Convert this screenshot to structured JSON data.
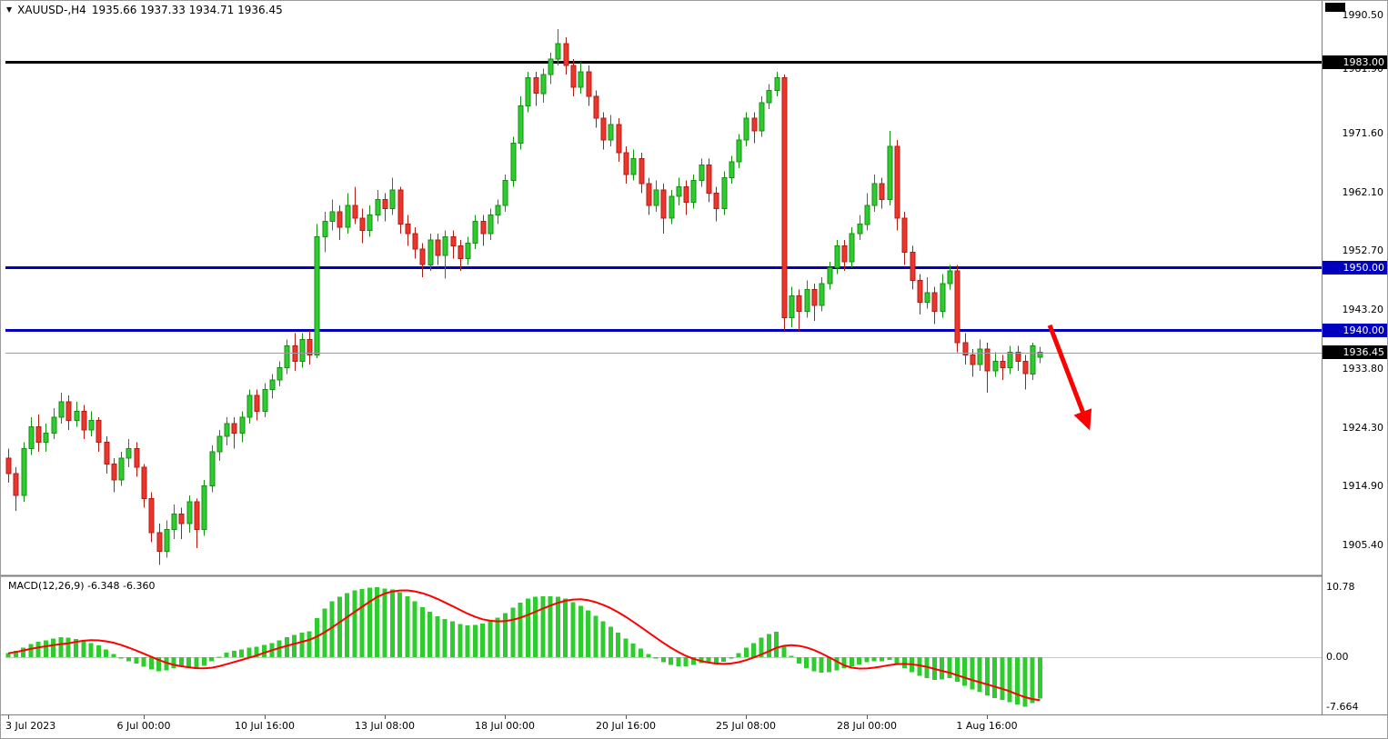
{
  "header": {
    "triangle": "▼",
    "symbol": "XAUUSD-,H4",
    "ohlc": "1935.66 1937.33 1934.71 1936.45"
  },
  "price_axis": {
    "ticks": [
      {
        "label": "1990.50",
        "price": 1990.5
      },
      {
        "label": "1981.90",
        "price": 1981.9
      },
      {
        "label": "1971.60",
        "price": 1971.6
      },
      {
        "label": "1962.10",
        "price": 1962.1
      },
      {
        "label": "1952.70",
        "price": 1952.7
      },
      {
        "label": "1943.20",
        "price": 1943.2
      },
      {
        "label": "1933.80",
        "price": 1933.8
      },
      {
        "label": "1924.30",
        "price": 1924.3
      },
      {
        "label": "1914.90",
        "price": 1914.9
      },
      {
        "label": "1905.40",
        "price": 1905.4
      }
    ],
    "tags": [
      {
        "label": "1983.00",
        "price": 1983.0,
        "bg": "#000000"
      },
      {
        "label": "1950.00",
        "price": 1950.0,
        "bg": "#0000BE"
      },
      {
        "label": "1940.00",
        "price": 1940.0,
        "bg": "#0000BE"
      },
      {
        "label": "1936.45",
        "price": 1936.45,
        "bg": "#000000"
      }
    ]
  },
  "time_axis": [
    {
      "label": "3 Jul 2023",
      "bar": 0
    },
    {
      "label": "6 Jul 00:00",
      "bar": 18
    },
    {
      "label": "10 Jul 16:00",
      "bar": 34
    },
    {
      "label": "13 Jul 08:00",
      "bar": 50
    },
    {
      "label": "18 Jul 00:00",
      "bar": 66
    },
    {
      "label": "20 Jul 16:00",
      "bar": 82
    },
    {
      "label": "25 Jul 08:00",
      "bar": 98
    },
    {
      "label": "28 Jul 00:00",
      "bar": 114
    },
    {
      "label": "1 Aug 16:00",
      "bar": 130
    }
  ],
  "macd_panel": {
    "title": "MACD(12,26,9) -6.348 -6.360",
    "ticks": [
      {
        "label": "10.78",
        "value": 10.78
      },
      {
        "label": "0.00",
        "value": 0.0
      },
      {
        "label": "-7.664",
        "value": -7.664
      }
    ]
  },
  "colors": {
    "bull": "#2ECC2E",
    "bull_border": "#149014",
    "bear": "#EE352C",
    "bear_border": "#B01D14",
    "macd_hist": "#2ECC2E",
    "macd_signal": "#FF0000",
    "bg": "#FFFFFF"
  },
  "chart_data": {
    "type": "candlestick",
    "symbol": "XAUUSD-",
    "timeframe": "H4",
    "current": {
      "open": 1935.66,
      "high": 1937.33,
      "low": 1934.71,
      "close": 1936.45
    },
    "price_axis_range": [
      1900.8,
      1990.8
    ],
    "candles": [
      [
        1919.5,
        1921.0,
        1915.5,
        1917.0
      ],
      [
        1917.0,
        1918.0,
        1911.0,
        1913.5
      ],
      [
        1913.5,
        1922.0,
        1912.5,
        1921.0
      ],
      [
        1921.0,
        1926.0,
        1920.0,
        1924.5
      ],
      [
        1924.5,
        1926.5,
        1920.5,
        1922.0
      ],
      [
        1922.0,
        1925.0,
        1920.5,
        1923.5
      ],
      [
        1923.5,
        1927.5,
        1922.5,
        1926.0
      ],
      [
        1926.0,
        1930.0,
        1925.0,
        1928.5
      ],
      [
        1928.5,
        1929.5,
        1924.0,
        1925.5
      ],
      [
        1925.5,
        1928.5,
        1924.5,
        1927.0
      ],
      [
        1927.0,
        1928.0,
        1922.5,
        1924.0
      ],
      [
        1924.0,
        1927.0,
        1923.0,
        1925.5
      ],
      [
        1925.5,
        1926.0,
        1920.5,
        1922.0
      ],
      [
        1922.0,
        1923.0,
        1917.0,
        1918.5
      ],
      [
        1918.5,
        1919.5,
        1914.0,
        1916.0
      ],
      [
        1916.0,
        1920.5,
        1915.0,
        1919.5
      ],
      [
        1919.5,
        1922.5,
        1918.0,
        1921.0
      ],
      [
        1921.0,
        1922.0,
        1916.5,
        1918.0
      ],
      [
        1918.0,
        1918.5,
        1911.5,
        1913.0
      ],
      [
        1913.0,
        1914.0,
        1906.0,
        1907.5
      ],
      [
        1907.5,
        1909.0,
        1902.3,
        1904.5
      ],
      [
        1904.5,
        1909.5,
        1903.5,
        1908.0
      ],
      [
        1908.0,
        1912.0,
        1906.5,
        1910.5
      ],
      [
        1910.5,
        1911.5,
        1906.5,
        1909.0
      ],
      [
        1909.0,
        1913.5,
        1907.5,
        1912.5
      ],
      [
        1912.5,
        1913.0,
        1905.0,
        1908.0
      ],
      [
        1908.0,
        1916.0,
        1907.0,
        1915.0
      ],
      [
        1915.0,
        1921.5,
        1914.0,
        1920.5
      ],
      [
        1920.5,
        1924.0,
        1919.0,
        1923.0
      ],
      [
        1923.0,
        1926.0,
        1921.5,
        1925.0
      ],
      [
        1925.0,
        1926.0,
        1921.0,
        1923.5
      ],
      [
        1923.5,
        1927.0,
        1922.0,
        1926.0
      ],
      [
        1926.0,
        1930.5,
        1925.0,
        1929.5
      ],
      [
        1929.5,
        1930.5,
        1925.5,
        1927.0
      ],
      [
        1927.0,
        1931.5,
        1926.0,
        1930.5
      ],
      [
        1930.5,
        1933.0,
        1929.0,
        1932.0
      ],
      [
        1932.0,
        1935.0,
        1931.0,
        1934.0
      ],
      [
        1934.0,
        1938.5,
        1933.0,
        1937.5
      ],
      [
        1937.5,
        1939.5,
        1933.5,
        1935.0
      ],
      [
        1935.0,
        1939.5,
        1934.0,
        1938.5
      ],
      [
        1938.5,
        1940.0,
        1934.5,
        1936.0
      ],
      [
        1936.0,
        1957.0,
        1935.5,
        1955.0
      ],
      [
        1955.0,
        1959.0,
        1952.5,
        1957.5
      ],
      [
        1957.5,
        1961.0,
        1956.0,
        1959.0
      ],
      [
        1959.0,
        1960.0,
        1954.5,
        1956.5
      ],
      [
        1956.5,
        1962.0,
        1955.5,
        1960.0
      ],
      [
        1960.0,
        1963.0,
        1957.0,
        1958.0
      ],
      [
        1958.0,
        1959.5,
        1954.0,
        1956.0
      ],
      [
        1956.0,
        1960.0,
        1955.0,
        1958.5
      ],
      [
        1958.5,
        1962.5,
        1957.5,
        1961.0
      ],
      [
        1961.0,
        1962.0,
        1957.5,
        1959.5
      ],
      [
        1959.5,
        1964.5,
        1958.5,
        1962.5
      ],
      [
        1962.5,
        1963.0,
        1955.5,
        1957.0
      ],
      [
        1957.0,
        1958.5,
        1953.5,
        1955.5
      ],
      [
        1955.5,
        1956.5,
        1951.5,
        1953.0
      ],
      [
        1953.0,
        1954.0,
        1948.5,
        1950.5
      ],
      [
        1950.5,
        1955.5,
        1949.5,
        1954.5
      ],
      [
        1954.5,
        1955.5,
        1950.5,
        1952.0
      ],
      [
        1952.0,
        1956.0,
        1948.3,
        1955.0
      ],
      [
        1955.0,
        1956.0,
        1951.5,
        1953.5
      ],
      [
        1953.5,
        1954.5,
        1949.5,
        1951.5
      ],
      [
        1951.5,
        1955.0,
        1950.5,
        1954.0
      ],
      [
        1954.0,
        1958.5,
        1953.0,
        1957.5
      ],
      [
        1957.5,
        1958.5,
        1953.5,
        1955.5
      ],
      [
        1955.5,
        1959.5,
        1954.5,
        1958.5
      ],
      [
        1958.5,
        1961.0,
        1957.0,
        1960.0
      ],
      [
        1960.0,
        1965.0,
        1959.0,
        1964.0
      ],
      [
        1964.0,
        1971.0,
        1963.0,
        1970.0
      ],
      [
        1970.0,
        1977.5,
        1969.0,
        1976.0
      ],
      [
        1976.0,
        1981.5,
        1975.0,
        1980.5
      ],
      [
        1980.5,
        1981.5,
        1976.0,
        1978.0
      ],
      [
        1978.0,
        1982.0,
        1976.5,
        1981.0
      ],
      [
        1981.0,
        1984.5,
        1979.5,
        1983.5
      ],
      [
        1983.5,
        1988.3,
        1982.5,
        1986.0
      ],
      [
        1986.0,
        1987.0,
        1981.0,
        1982.5
      ],
      [
        1982.5,
        1983.5,
        1977.5,
        1979.0
      ],
      [
        1979.0,
        1983.0,
        1978.0,
        1981.5
      ],
      [
        1981.5,
        1982.5,
        1976.0,
        1977.5
      ],
      [
        1977.5,
        1978.5,
        1972.5,
        1974.0
      ],
      [
        1974.0,
        1975.0,
        1969.0,
        1970.5
      ],
      [
        1970.5,
        1974.5,
        1969.5,
        1973.0
      ],
      [
        1973.0,
        1974.0,
        1967.0,
        1968.5
      ],
      [
        1968.5,
        1969.5,
        1963.5,
        1965.0
      ],
      [
        1965.0,
        1969.0,
        1964.0,
        1967.5
      ],
      [
        1967.5,
        1968.5,
        1962.0,
        1963.5
      ],
      [
        1963.5,
        1964.5,
        1958.5,
        1960.0
      ],
      [
        1960.0,
        1964.0,
        1959.0,
        1962.5
      ],
      [
        1962.5,
        1963.5,
        1955.5,
        1958.0
      ],
      [
        1958.0,
        1962.5,
        1957.0,
        1961.5
      ],
      [
        1961.5,
        1964.5,
        1960.0,
        1963.0
      ],
      [
        1963.0,
        1964.0,
        1958.5,
        1960.5
      ],
      [
        1960.5,
        1965.0,
        1959.5,
        1964.0
      ],
      [
        1964.0,
        1967.5,
        1963.0,
        1966.5
      ],
      [
        1966.5,
        1967.5,
        1960.5,
        1962.0
      ],
      [
        1962.0,
        1963.0,
        1957.5,
        1959.5
      ],
      [
        1959.5,
        1965.5,
        1958.5,
        1964.5
      ],
      [
        1964.5,
        1968.0,
        1963.5,
        1967.0
      ],
      [
        1967.0,
        1971.5,
        1966.0,
        1970.5
      ],
      [
        1970.5,
        1975.0,
        1969.5,
        1974.0
      ],
      [
        1974.0,
        1975.0,
        1970.0,
        1972.0
      ],
      [
        1972.0,
        1977.5,
        1971.0,
        1976.5
      ],
      [
        1976.5,
        1979.5,
        1975.5,
        1978.5
      ],
      [
        1978.5,
        1981.5,
        1977.5,
        1980.5
      ],
      [
        1980.5,
        1981.0,
        1940.0,
        1942.0
      ],
      [
        1942.0,
        1947.0,
        1940.5,
        1945.5
      ],
      [
        1945.5,
        1946.5,
        1939.8,
        1943.0
      ],
      [
        1943.0,
        1948.0,
        1942.0,
        1946.5
      ],
      [
        1946.5,
        1947.5,
        1941.5,
        1944.0
      ],
      [
        1944.0,
        1948.5,
        1943.0,
        1947.5
      ],
      [
        1947.5,
        1951.0,
        1946.5,
        1950.0
      ],
      [
        1950.0,
        1954.5,
        1949.0,
        1953.5
      ],
      [
        1953.5,
        1954.5,
        1949.5,
        1951.0
      ],
      [
        1951.0,
        1956.5,
        1950.0,
        1955.5
      ],
      [
        1955.5,
        1958.5,
        1954.5,
        1957.0
      ],
      [
        1957.0,
        1962.0,
        1956.0,
        1960.0
      ],
      [
        1960.0,
        1965.0,
        1959.0,
        1963.5
      ],
      [
        1963.5,
        1964.5,
        1959.5,
        1961.0
      ],
      [
        1961.0,
        1972.0,
        1960.0,
        1969.5
      ],
      [
        1969.5,
        1970.5,
        1956.0,
        1958.0
      ],
      [
        1958.0,
        1959.0,
        1950.5,
        1952.5
      ],
      [
        1952.5,
        1953.5,
        1946.5,
        1948.0
      ],
      [
        1948.0,
        1949.0,
        1942.5,
        1944.5
      ],
      [
        1944.5,
        1948.5,
        1943.5,
        1946.0
      ],
      [
        1946.0,
        1947.0,
        1941.0,
        1943.0
      ],
      [
        1943.0,
        1949.0,
        1942.0,
        1947.5
      ],
      [
        1947.5,
        1950.5,
        1946.5,
        1949.5
      ],
      [
        1949.5,
        1950.5,
        1936.5,
        1938.0
      ],
      [
        1938.0,
        1939.5,
        1934.5,
        1936.0
      ],
      [
        1936.0,
        1937.0,
        1932.5,
        1934.5
      ],
      [
        1934.5,
        1938.5,
        1933.5,
        1937.0
      ],
      [
        1937.0,
        1938.0,
        1930.0,
        1933.5
      ],
      [
        1933.5,
        1936.5,
        1932.5,
        1935.0
      ],
      [
        1935.0,
        1936.0,
        1932.0,
        1934.0
      ],
      [
        1934.0,
        1937.5,
        1933.0,
        1936.5
      ],
      [
        1936.5,
        1937.5,
        1933.5,
        1935.0
      ],
      [
        1935.0,
        1936.0,
        1930.5,
        1933.0
      ],
      [
        1933.0,
        1938.0,
        1932.0,
        1937.5
      ],
      [
        1935.66,
        1937.33,
        1934.71,
        1936.45
      ]
    ],
    "hlines": [
      {
        "price": 1983.0,
        "color": "#000000",
        "width": 3,
        "role": "resistance"
      },
      {
        "price": 1950.0,
        "color": "#0000BE",
        "width": 3,
        "role": "support-resistance"
      },
      {
        "price": 1940.0,
        "color": "#0000BE",
        "width": 3,
        "role": "support"
      },
      {
        "price": 1936.45,
        "color": "#9B9B9B",
        "width": 1,
        "role": "current-price"
      }
    ],
    "indicator": {
      "type": "MACD",
      "params": [
        12,
        26,
        9
      ],
      "current_macd": -6.348,
      "current_signal": -6.36,
      "ylim": [
        -7.664,
        10.78
      ],
      "signal_smoothing": 9,
      "histogram": [
        0.6,
        1.0,
        1.5,
        2.0,
        2.4,
        2.6,
        2.9,
        3.1,
        3.0,
        2.8,
        2.5,
        2.2,
        1.8,
        1.2,
        0.5,
        -0.2,
        -0.6,
        -1.0,
        -1.5,
        -1.9,
        -2.2,
        -2.0,
        -1.7,
        -1.5,
        -1.6,
        -1.8,
        -1.3,
        -0.6,
        0.1,
        0.7,
        1.0,
        1.2,
        1.5,
        1.6,
        1.9,
        2.2,
        2.6,
        3.1,
        3.4,
        3.8,
        4.0,
        6.0,
        7.5,
        8.6,
        9.3,
        9.9,
        10.3,
        10.5,
        10.7,
        10.78,
        10.6,
        10.4,
        10.0,
        9.4,
        8.6,
        7.7,
        7.0,
        6.3,
        5.9,
        5.5,
        5.1,
        4.9,
        5.0,
        5.2,
        5.6,
        6.1,
        6.8,
        7.6,
        8.4,
        9.0,
        9.3,
        9.4,
        9.4,
        9.3,
        9.0,
        8.5,
        7.9,
        7.2,
        6.4,
        5.5,
        4.7,
        3.8,
        2.9,
        2.1,
        1.3,
        0.5,
        -0.2,
        -0.8,
        -1.2,
        -1.4,
        -1.4,
        -1.2,
        -0.9,
        -0.8,
        -0.9,
        -0.7,
        -0.2,
        0.6,
        1.5,
        2.2,
        3.0,
        3.6,
        3.9,
        1.8,
        0.2,
        -1.0,
        -1.7,
        -2.2,
        -2.4,
        -2.3,
        -2.0,
        -1.7,
        -1.4,
        -1.1,
        -0.8,
        -0.6,
        -0.6,
        -0.4,
        -1.0,
        -1.7,
        -2.3,
        -2.9,
        -3.2,
        -3.5,
        -3.4,
        -3.2,
        -3.8,
        -4.4,
        -5.0,
        -5.3,
        -5.9,
        -6.3,
        -6.6,
        -6.9,
        -7.3,
        -7.664,
        -7.1,
        -6.348
      ]
    },
    "annotation_arrow": {
      "from": {
        "bar": 138.3,
        "price": 1940.8
      },
      "to": {
        "bar": 143.4,
        "price": 1924.6
      },
      "color": "#FF0000"
    }
  }
}
